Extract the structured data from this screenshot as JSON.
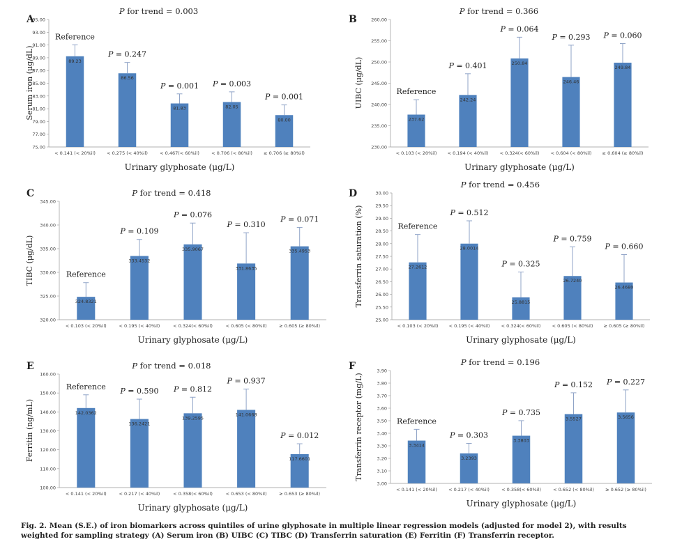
{
  "caption": "Fig. 2. Mean (S.E.) of iron biomarkers across quintiles of urine glyphosate in multiple linear regression models (adjusted for model 2), with results weighted for sampling strategy (A) Serum iron (B) UIBC (C) TIBC (D) Transferrin saturation (E) Ferritin (F) Transferrin receptor.",
  "colors": {
    "bar": "#4f81bd",
    "error": "#8fa3c7",
    "text": "#222222"
  },
  "chart_data": [
    {
      "type": "bar",
      "panel_letter": "A",
      "trend_label": "P  for trend = 0.003",
      "ylabel": "Serum iron (μg/dL)",
      "xlabel": "Urinary glyphosate (μg/L)",
      "ylim": [
        75,
        95
      ],
      "yticks": [
        75,
        77,
        79,
        81,
        83,
        85,
        87,
        89,
        91,
        93,
        95
      ],
      "ytick_labels": [
        "75.00",
        "77.00",
        "79.00",
        "81.00",
        "83.00",
        "85.00",
        "87.00",
        "89.00",
        "91.00",
        "93.00",
        "95.00"
      ],
      "categories": [
        "< 0.141 (< 20%il)",
        "< 0.275 (< 40%il)",
        "< 0.467(< 60%il)",
        "< 0.706 (< 80%il)",
        "≥ 0.706 (≥ 80%il)"
      ],
      "values": [
        89.23,
        86.56,
        81.83,
        82.05,
        80.0
      ],
      "errors": [
        1.8,
        1.7,
        1.5,
        1.6,
        1.6
      ],
      "value_labels": [
        "89.23",
        "86.56",
        "81.83",
        "82.05",
        "80.00"
      ],
      "annotations": [
        "Reference",
        "P = 0.247",
        "P = 0.001",
        "P = 0.003",
        "P = 0.001"
      ]
    },
    {
      "type": "bar",
      "panel_letter": "B",
      "trend_label": "P  for trend = 0.366",
      "ylabel": "UIBC (μg/dL)",
      "xlabel": "Urinary glyphosate (μg/L)",
      "ylim": [
        230,
        260
      ],
      "yticks": [
        230,
        235,
        240,
        245,
        250,
        255,
        260
      ],
      "ytick_labels": [
        "230.00",
        "235.00",
        "240.00",
        "245.00",
        "250.00",
        "255.00",
        "260.00"
      ],
      "categories": [
        "< 0.103 (< 20%il)",
        "< 0.194 (< 40%il)",
        "< 0.324(< 60%il)",
        "< 0.604 (< 80%il)",
        "≥ 0.604 (≥ 80%il)"
      ],
      "values": [
        237.62,
        242.24,
        250.84,
        246.46,
        249.84
      ],
      "errors": [
        3.5,
        5.0,
        5.0,
        7.5,
        4.5
      ],
      "value_labels": [
        "237.62",
        "242.24",
        "250.84",
        "246.46",
        "249.84"
      ],
      "annotations": [
        "Reference",
        "P = 0.401",
        "P = 0.064",
        "P = 0.293",
        "P = 0.060"
      ]
    },
    {
      "type": "bar",
      "panel_letter": "C",
      "trend_label": "P  for trend = 0.418",
      "ylabel": "TIBC (μg/dL)",
      "xlabel": "Urinary glyphosate (μg/L)",
      "ylim": [
        320,
        345
      ],
      "yticks": [
        320,
        325,
        330,
        335,
        340,
        345
      ],
      "ytick_labels": [
        "320.00",
        "325.00",
        "330.00",
        "335.00",
        "340.00",
        "345.00"
      ],
      "categories": [
        "< 0.103 (< 20%il)",
        "< 0.195 (< 40%il)",
        "< 0.324(< 60%il)",
        "< 0.605 (< 80%il)",
        "≥ 0.605 (≥ 80%il)"
      ],
      "values": [
        324.8321,
        333.4532,
        335.9067,
        331.8635,
        335.4953
      ],
      "errors": [
        3.0,
        3.5,
        4.5,
        6.5,
        4.0
      ],
      "value_labels": [
        "324.8321",
        "333.4532",
        "335.9067",
        "331.8635",
        "335.4953"
      ],
      "annotations": [
        "Reference",
        "P = 0.109",
        "P = 0.076",
        "P = 0.310",
        "P = 0.071"
      ]
    },
    {
      "type": "bar",
      "panel_letter": "D",
      "trend_label": "P  for trend = 0.456",
      "ylabel": "Transferrin saturation (%)",
      "xlabel": "Urinary glyphosate (μg/L)",
      "ylim": [
        25,
        30
      ],
      "yticks": [
        25,
        25.5,
        26,
        26.5,
        27,
        27.5,
        28,
        28.5,
        29,
        29.5,
        30
      ],
      "ytick_labels": [
        "25.00",
        "25.50",
        "26.00",
        "26.50",
        "27.00",
        "27.50",
        "28.00",
        "28.50",
        "29.00",
        "29.50",
        "30.00"
      ],
      "categories": [
        "< 0.103 (< 20%il)",
        "< 0.195 (< 40%il)",
        "< 0.324(< 60%il)",
        "< 0.605 (< 80%il)",
        "≥ 0.605 (≥ 80%il)"
      ],
      "values": [
        27.2612,
        28.0014,
        25.8815,
        26.724,
        26.468
      ],
      "errors": [
        1.1,
        0.9,
        1.0,
        1.15,
        1.1
      ],
      "value_labels": [
        "27.2612",
        "28.0014",
        "25.8815",
        "26.7240",
        "26.4680"
      ],
      "annotations": [
        "Reference",
        "P = 0.512",
        "P = 0.325",
        "P = 0.759",
        "P = 0.660"
      ]
    },
    {
      "type": "bar",
      "panel_letter": "E",
      "trend_label": "P  for trend = 0.018",
      "ylabel": "Ferritin (ng/mL)",
      "xlabel": "Urinary glyphosate (μg/L)",
      "ylim": [
        100,
        160
      ],
      "yticks": [
        100,
        110,
        120,
        130,
        140,
        150,
        160
      ],
      "ytick_labels": [
        "100.00",
        "110.00",
        "120.00",
        "130.00",
        "140.00",
        "150.00",
        "160.00"
      ],
      "categories": [
        "< 0.141 (< 20%il)",
        "< 0.217 (< 40%il)",
        "< 0.358(< 60%il)",
        "< 0.653 (< 80%il)",
        "≥ 0.653 (≥ 80%il)"
      ],
      "values": [
        142.0362,
        136.2421,
        139.2595,
        141.0668,
        117.6601
      ],
      "errors": [
        7.0,
        10.5,
        8.5,
        11.0,
        5.5
      ],
      "value_labels": [
        "142.0362",
        "136.2421",
        "139.2595",
        "141.0668",
        "117.6601"
      ],
      "annotations": [
        "Reference",
        "P = 0.590",
        "P = 0.812",
        "P = 0.937",
        "P = 0.012"
      ]
    },
    {
      "type": "bar",
      "panel_letter": "F",
      "trend_label": "P  for trend = 0.196",
      "ylabel": "Transferrin receptor (mg/L)",
      "xlabel": "Urinary glyphosate (μg/L)",
      "ylim": [
        3.0,
        3.9
      ],
      "yticks": [
        3.0,
        3.1,
        3.2,
        3.3,
        3.4,
        3.5,
        3.6,
        3.7,
        3.8,
        3.9
      ],
      "ytick_labels": [
        "3.00",
        "3.10",
        "3.20",
        "3.30",
        "3.40",
        "3.50",
        "3.60",
        "3.70",
        "3.80",
        "3.90"
      ],
      "categories": [
        "< 0.141 (< 20%il)",
        "< 0.217 (< 40%il)",
        "< 0.358(< 60%il)",
        "< 0.652 (< 80%il)",
        "≥ 0.652 (≥ 80%il)"
      ],
      "values": [
        3.3414,
        3.2393,
        3.3803,
        3.5527,
        3.5656
      ],
      "errors": [
        0.09,
        0.08,
        0.12,
        0.17,
        0.18
      ],
      "value_labels": [
        "3.3414",
        "3.2393",
        "3.3803",
        "3.5527",
        "3.5656"
      ],
      "annotations": [
        "Reference",
        "P = 0.303",
        "P = 0.735",
        "P = 0.152",
        "P = 0.227"
      ]
    }
  ]
}
